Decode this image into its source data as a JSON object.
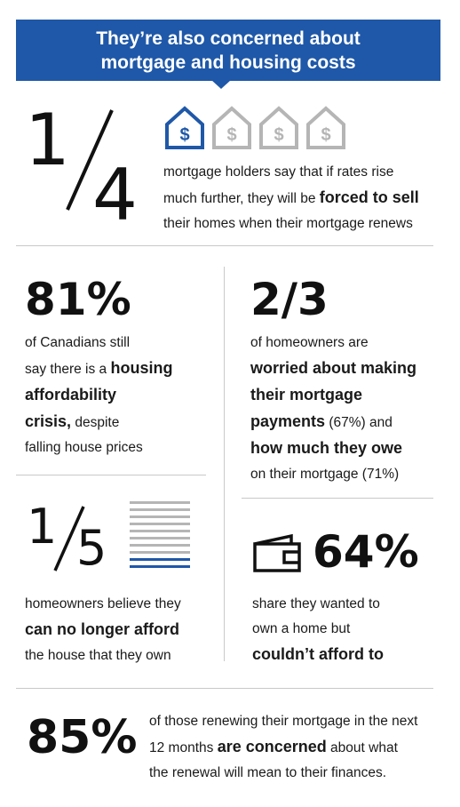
{
  "header": {
    "title_line1": "They’re also concerned about",
    "title_line2": "mortgage and housing costs"
  },
  "colors": {
    "accent_blue": "#1f58a8",
    "icon_grey": "#b5b5b5",
    "text": "#1a1a1a"
  },
  "stat1": {
    "num": "1",
    "den": "4",
    "icons": [
      "house-dollar-icon",
      "house-dollar-icon",
      "house-dollar-icon",
      "house-dollar-icon"
    ],
    "highlighted_count": 1,
    "line1": "mortgage holders say that if rates rise",
    "line2_a": "much further, they will be ",
    "line2_b": "forced to sell",
    "line3": "their homes when their mortgage renews"
  },
  "stat2": {
    "value": "81%",
    "line1": "of Canadians still",
    "line2_a": "say there is a ",
    "line2_b": "housing",
    "line3": "affordability",
    "line4_a": "crisis,",
    "line4_b": " despite",
    "line5": "falling house prices"
  },
  "stat3": {
    "value": "2/3",
    "line1": "of homeowners are",
    "line2": "worried about making",
    "line3": "their mortgage",
    "line4_a": "payments",
    "line4_b": " (67%) and",
    "line5": "how much they owe",
    "line6": "on their mortgage (71%)"
  },
  "stat4": {
    "num": "1",
    "den": "5",
    "stripe_total": 10,
    "stripe_highlighted": 2,
    "line1": "homeowners believe they",
    "line2": "can no longer afford",
    "line3": "the house that they own"
  },
  "stat5": {
    "icon": "wallet-icon",
    "value": "64%",
    "line1": "share they wanted to",
    "line2": "own a home but",
    "line3": "couldn’t afford to"
  },
  "stat6": {
    "value": "85%",
    "line1": "of those renewing their mortgage in the next",
    "line2_a": "12 months ",
    "line2_b": "are concerned",
    "line2_c": " about what",
    "line3": "the renewal will mean to their finances."
  }
}
